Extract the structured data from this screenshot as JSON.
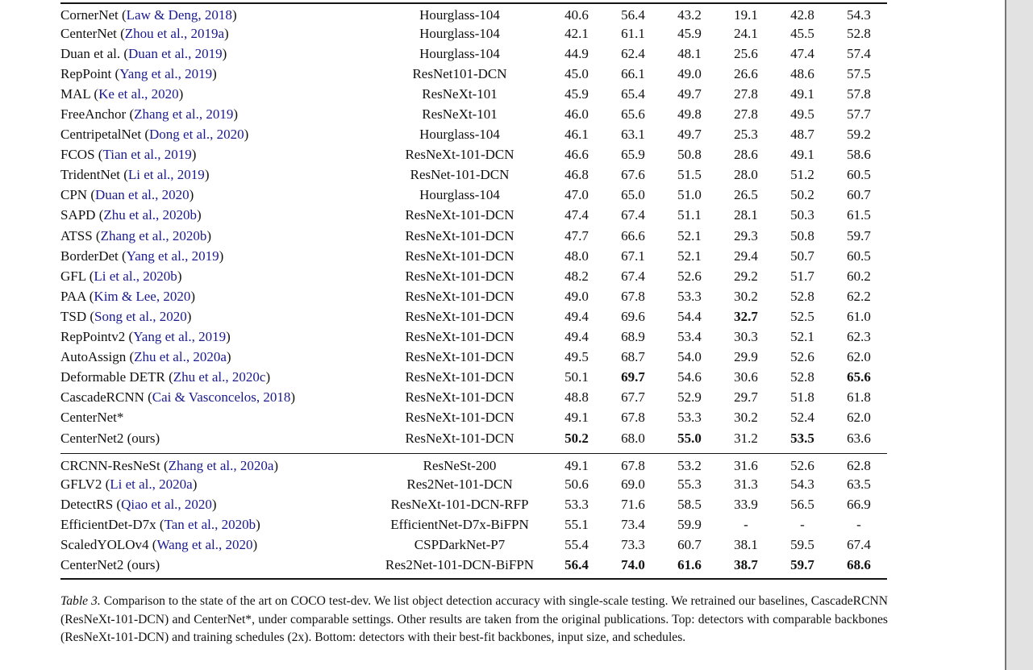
{
  "colors": {
    "citation_link": "#1a1a8c",
    "rule": "#141414",
    "gutter_bg": "#e2e2e2",
    "gutter_border": "#757575"
  },
  "table": {
    "sections": [
      {
        "rows": [
          {
            "method": "CornerNet",
            "cite": "Law & Deng, 2018",
            "backbone": "Hourglass-104",
            "values": [
              "40.6",
              "56.4",
              "43.2",
              "19.1",
              "42.8",
              "54.3"
            ]
          },
          {
            "method": "CenterNet",
            "cite": "Zhou et al., 2019a",
            "backbone": "Hourglass-104",
            "values": [
              "42.1",
              "61.1",
              "45.9",
              "24.1",
              "45.5",
              "52.8"
            ]
          },
          {
            "method": "Duan et al.",
            "cite": "Duan et al., 2019",
            "backbone": "Hourglass-104",
            "values": [
              "44.9",
              "62.4",
              "48.1",
              "25.6",
              "47.4",
              "57.4"
            ]
          },
          {
            "method": "RepPoint",
            "cite": "Yang et al., 2019",
            "backbone": "ResNet101-DCN",
            "values": [
              "45.0",
              "66.1",
              "49.0",
              "26.6",
              "48.6",
              "57.5"
            ]
          },
          {
            "method": "MAL",
            "cite": "Ke et al., 2020",
            "backbone": "ResNeXt-101",
            "values": [
              "45.9",
              "65.4",
              "49.7",
              "27.8",
              "49.1",
              "57.8"
            ]
          },
          {
            "method": "FreeAnchor",
            "cite": "Zhang et al., 2019",
            "backbone": "ResNeXt-101",
            "values": [
              "46.0",
              "65.6",
              "49.8",
              "27.8",
              "49.5",
              "57.7"
            ]
          },
          {
            "method": "CentripetalNet",
            "cite": "Dong et al., 2020",
            "backbone": "Hourglass-104",
            "values": [
              "46.1",
              "63.1",
              "49.7",
              "25.3",
              "48.7",
              "59.2"
            ]
          },
          {
            "method": "FCOS",
            "cite": "Tian et al., 2019",
            "backbone": "ResNeXt-101-DCN",
            "values": [
              "46.6",
              "65.9",
              "50.8",
              "28.6",
              "49.1",
              "58.6"
            ]
          },
          {
            "method": "TridentNet",
            "cite": "Li et al., 2019",
            "backbone": "ResNet-101-DCN",
            "values": [
              "46.8",
              "67.6",
              "51.5",
              "28.0",
              "51.2",
              "60.5"
            ]
          },
          {
            "method": "CPN",
            "cite": "Duan et al., 2020",
            "backbone": "Hourglass-104",
            "values": [
              "47.0",
              "65.0",
              "51.0",
              "26.5",
              "50.2",
              "60.7"
            ]
          },
          {
            "method": "SAPD",
            "cite": "Zhu et al., 2020b",
            "backbone": "ResNeXt-101-DCN",
            "values": [
              "47.4",
              "67.4",
              "51.1",
              "28.1",
              "50.3",
              "61.5"
            ]
          },
          {
            "method": "ATSS",
            "cite": "Zhang et al., 2020b",
            "backbone": "ResNeXt-101-DCN",
            "values": [
              "47.7",
              "66.6",
              "52.1",
              "29.3",
              "50.8",
              "59.7"
            ]
          },
          {
            "method": "BorderDet",
            "cite": "Yang et al., 2019",
            "backbone": "ResNeXt-101-DCN",
            "values": [
              "48.0",
              "67.1",
              "52.1",
              "29.4",
              "50.7",
              "60.5"
            ]
          },
          {
            "method": "GFL",
            "cite": "Li et al., 2020b",
            "backbone": "ResNeXt-101-DCN",
            "values": [
              "48.2",
              "67.4",
              "52.6",
              "29.2",
              "51.7",
              "60.2"
            ]
          },
          {
            "method": "PAA",
            "cite": "Kim & Lee, 2020",
            "backbone": "ResNeXt-101-DCN",
            "values": [
              "49.0",
              "67.8",
              "53.3",
              "30.2",
              "52.8",
              "62.2"
            ]
          },
          {
            "method": "TSD",
            "cite": "Song et al., 2020",
            "backbone": "ResNeXt-101-DCN",
            "values": [
              "49.4",
              "69.6",
              "54.4",
              "32.7",
              "52.5",
              "61.0"
            ],
            "bold": [
              0,
              0,
              0,
              1,
              0,
              0
            ]
          },
          {
            "method": "RepPointv2",
            "cite": "Yang et al., 2019",
            "backbone": "ResNeXt-101-DCN",
            "values": [
              "49.4",
              "68.9",
              "53.4",
              "30.3",
              "52.1",
              "62.3"
            ]
          },
          {
            "method": "AutoAssign",
            "cite": "Zhu et al., 2020a",
            "backbone": "ResNeXt-101-DCN",
            "values": [
              "49.5",
              "68.7",
              "54.0",
              "29.9",
              "52.6",
              "62.0"
            ]
          },
          {
            "method": "Deformable DETR",
            "cite": "Zhu et al., 2020c",
            "backbone": "ResNeXt-101-DCN",
            "values": [
              "50.1",
              "69.7",
              "54.6",
              "30.6",
              "52.8",
              "65.6"
            ],
            "bold": [
              0,
              1,
              0,
              0,
              0,
              1
            ]
          },
          {
            "method": "CascadeRCNN",
            "cite": "Cai & Vasconcelos, 2018",
            "backbone": "ResNeXt-101-DCN",
            "values": [
              "48.8",
              "67.7",
              "52.9",
              "29.7",
              "51.8",
              "61.8"
            ]
          },
          {
            "method": "CenterNet*",
            "cite": null,
            "backbone": "ResNeXt-101-DCN",
            "values": [
              "49.1",
              "67.8",
              "53.3",
              "30.2",
              "52.4",
              "62.0"
            ]
          },
          {
            "method": "CenterNet2 (ours)",
            "cite": null,
            "backbone": "ResNeXt-101-DCN",
            "values": [
              "50.2",
              "68.0",
              "55.0",
              "31.2",
              "53.5",
              "63.6"
            ],
            "bold": [
              1,
              0,
              1,
              0,
              1,
              0
            ]
          }
        ]
      },
      {
        "rows": [
          {
            "method": "CRCNN-ResNeSt",
            "cite": "Zhang et al., 2020a",
            "backbone": "ResNeSt-200",
            "values": [
              "49.1",
              "67.8",
              "53.2",
              "31.6",
              "52.6",
              "62.8"
            ]
          },
          {
            "method": "GFLV2",
            "cite": "Li et al., 2020a",
            "backbone": "Res2Net-101-DCN",
            "values": [
              "50.6",
              "69.0",
              "55.3",
              "31.3",
              "54.3",
              "63.5"
            ]
          },
          {
            "method": "DetectRS",
            "cite": "Qiao et al., 2020",
            "backbone": "ResNeXt-101-DCN-RFP",
            "values": [
              "53.3",
              "71.6",
              "58.5",
              "33.9",
              "56.5",
              "66.9"
            ]
          },
          {
            "method": "EfficientDet-D7x",
            "cite": "Tan et al., 2020b",
            "backbone": "EfficientNet-D7x-BiFPN",
            "values": [
              "55.1",
              "73.4",
              "59.9",
              "-",
              "-",
              "-"
            ]
          },
          {
            "method": "ScaledYOLOv4",
            "cite": "Wang et al., 2020",
            "backbone": "CSPDarkNet-P7",
            "values": [
              "55.4",
              "73.3",
              "60.7",
              "38.1",
              "59.5",
              "67.4"
            ]
          },
          {
            "method": "CenterNet2 (ours)",
            "cite": null,
            "backbone": "Res2Net-101-DCN-BiFPN",
            "values": [
              "56.4",
              "74.0",
              "61.6",
              "38.7",
              "59.7",
              "68.6"
            ],
            "bold": [
              1,
              1,
              1,
              1,
              1,
              1
            ]
          }
        ]
      }
    ]
  },
  "caption": {
    "label": "Table 3.",
    "text": " Comparison to the state of the art on COCO test-dev. We list object detection accuracy with single-scale testing. We retrained our baselines, CascadeRCNN (ResNeXt-101-DCN) and CenterNet*, under comparable settings. Other results are taken from the original publications. Top: detectors with comparable backbones (ResNeXt-101-DCN) and training schedules (2x). Bottom: detectors with their best-fit backbones, input size, and schedules."
  }
}
